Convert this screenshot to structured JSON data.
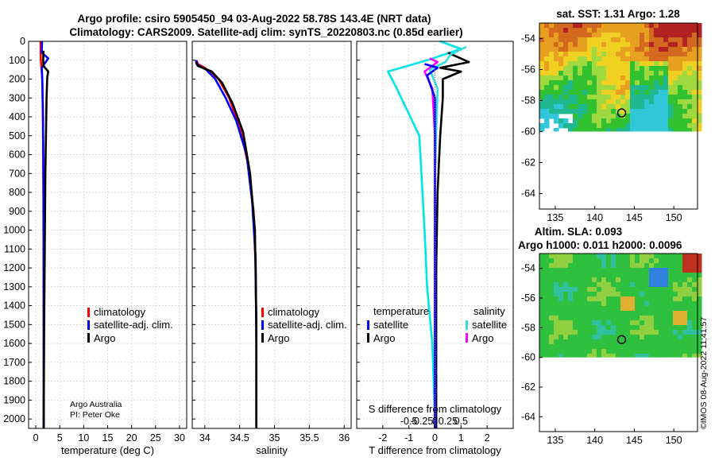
{
  "header": {
    "title_line1": "Argo profile: csiro 5905450_94 03-Aug-2022 58.78S 143.4E (NRT data)",
    "title_line2": "Climatology: CARS2009. Satellite-adj clim: synTS_20220803.nc (0.85d earlier)"
  },
  "credits": {
    "program": "Argo Australia",
    "pi": "PI: Peter Oke",
    "watermark": "©IMOS 08-Aug-2022 11:41:57"
  },
  "colors": {
    "climatology": "#ff0000",
    "satellite_clim": "#0000ff",
    "argo": "#000000",
    "temp_satellite": "#00e5e5",
    "sal_argo": "#ff00ff",
    "sal_satellite": "#33dddd"
  },
  "chart_data": [
    {
      "type": "line",
      "id": "temperature",
      "xlabel": "temperature (deg C)",
      "xlim": [
        -1.5,
        31.5
      ],
      "xticks": [
        0,
        5,
        10,
        15,
        20,
        25,
        30
      ],
      "ylim": [
        0,
        2050
      ],
      "yticks": [
        0,
        100,
        200,
        300,
        400,
        500,
        600,
        700,
        800,
        900,
        1000,
        1100,
        1200,
        1300,
        1400,
        1500,
        1600,
        1700,
        1800,
        1900,
        2000
      ],
      "ydir": "reverse",
      "grid": true,
      "legend": [
        "climatology",
        "satellite-adj. clim.",
        "Argo"
      ],
      "series": [
        {
          "name": "climatology",
          "color": "#ff0000",
          "x": [
            1.0,
            1.0,
            1.05,
            1.2,
            1.35,
            1.5,
            1.6,
            1.65,
            1.65
          ],
          "y": [
            0,
            50,
            100,
            150,
            200,
            400,
            800,
            1500,
            2050
          ]
        },
        {
          "name": "satellite-adj. clim.",
          "color": "#0000ff",
          "x": [
            1.3,
            1.25,
            2.6,
            1.25,
            1.35,
            1.5,
            1.6,
            1.65,
            1.65
          ],
          "y": [
            0,
            60,
            90,
            140,
            200,
            400,
            800,
            1500,
            2050
          ]
        },
        {
          "name": "Argo",
          "color": "#000000",
          "x": [
            1.6,
            1.55,
            1.6,
            2.6,
            2.4,
            2.25,
            2.0,
            1.75,
            1.65
          ],
          "y": [
            50,
            100,
            130,
            160,
            190,
            300,
            700,
            1500,
            2050
          ]
        }
      ]
    },
    {
      "type": "line",
      "id": "salinity",
      "xlabel": "salinity",
      "xlim": [
        33.82,
        36.1
      ],
      "xticks": [
        34,
        34.5,
        35,
        35.5,
        36
      ],
      "ylim": [
        0,
        2050
      ],
      "ydir": "reverse",
      "grid": true,
      "legend": [
        "climatology",
        "satellite-adj. clim.",
        "Argo"
      ],
      "series": [
        {
          "name": "climatology",
          "color": "#ff0000",
          "x": [
            33.88,
            33.9,
            34.0,
            34.2,
            34.35,
            34.5,
            34.62,
            34.7,
            34.73,
            34.74,
            34.74
          ],
          "y": [
            100,
            120,
            140,
            200,
            300,
            450,
            650,
            900,
            1200,
            1600,
            2050
          ]
        },
        {
          "name": "satellite-adj. clim.",
          "color": "#0000ff",
          "x": [
            33.87,
            33.9,
            34.02,
            34.15,
            34.3,
            34.45,
            34.6,
            34.68,
            34.73,
            34.74,
            34.74
          ],
          "y": [
            100,
            125,
            150,
            200,
            300,
            420,
            600,
            850,
            1150,
            1600,
            2050
          ]
        },
        {
          "name": "Argo",
          "color": "#000000",
          "x": [
            33.87,
            33.9,
            34.1,
            34.25,
            34.4,
            34.55,
            34.65,
            34.72,
            34.74,
            34.74
          ],
          "y": [
            110,
            130,
            160,
            220,
            330,
            480,
            700,
            1000,
            1500,
            2050
          ]
        }
      ]
    },
    {
      "type": "line",
      "id": "difference",
      "xlabel": "T difference from climatology",
      "xlabel_top": "S difference from climatology",
      "xlim": [
        -3,
        3
      ],
      "xticks": [
        -2,
        -1,
        0,
        1,
        2
      ],
      "top_ticks": [
        "-0.5",
        "-0.25",
        "0",
        "0.25",
        "0.5"
      ],
      "ylim": [
        0,
        2050
      ],
      "ydir": "reverse",
      "grid": true,
      "legend_temperature": {
        "title": "temperature",
        "entries": [
          "satellite",
          "Argo"
        ]
      },
      "legend_salinity": {
        "title": "salinity",
        "entries": [
          "satellite",
          "Argo"
        ]
      },
      "series": [
        {
          "name": "temperature satellite",
          "color": "#00e5e5",
          "x": [
            0.2,
            1.0,
            -0.3,
            -1.8,
            -1.5,
            -0.6,
            -0.4,
            -0.3,
            -0.1,
            0.0,
            0.0
          ],
          "y": [
            0,
            40,
            100,
            160,
            240,
            500,
            1000,
            1300,
            1600,
            2000,
            2050
          ]
        },
        {
          "name": "temperature Argo",
          "color": "#000000",
          "x": [
            0.5,
            1.3,
            0.2,
            1.0,
            0.3,
            0.3,
            0.2,
            0.1,
            0.05,
            0.05
          ],
          "y": [
            60,
            110,
            140,
            160,
            200,
            300,
            500,
            800,
            1200,
            2050
          ]
        },
        {
          "name": "salinity satellite",
          "color": "#33dddd",
          "x": [
            1.2,
            0.6,
            0.4,
            -0.2,
            0.1,
            0.0,
            0.0
          ],
          "y": [
            30,
            70,
            110,
            150,
            250,
            700,
            2050
          ]
        },
        {
          "name": "salinity Argo",
          "color": "#ff00ff",
          "x": [
            -0.2,
            0.1,
            -0.4,
            -0.1,
            0.0,
            0.0
          ],
          "y": [
            90,
            110,
            160,
            250,
            500,
            2050
          ]
        },
        {
          "name": "blue trace",
          "color": "#0000ff",
          "x": [
            -0.4,
            0.1,
            -0.3,
            0.0,
            0.0
          ],
          "y": [
            120,
            140,
            180,
            300,
            2050
          ]
        }
      ]
    },
    {
      "type": "heatmap",
      "id": "sst_map",
      "title": "sat. SST: 1.31 Argo: 1.28",
      "xlim": [
        133,
        153
      ],
      "ylim": [
        -65,
        -53
      ],
      "xticks": [
        135,
        140,
        145,
        150
      ],
      "yticks": [
        -54,
        -56,
        -58,
        -60,
        -62,
        -64
      ],
      "marker": {
        "lon": 143.4,
        "lat": -58.8
      }
    },
    {
      "type": "heatmap",
      "id": "sla_map",
      "title_line1": "Altim. SLA: 0.093",
      "title_line2": "Argo h1000: 0.011 h2000: 0.0096",
      "xlim": [
        133,
        153
      ],
      "ylim": [
        -65,
        -53
      ],
      "xticks": [
        135,
        140,
        145,
        150
      ],
      "yticks": [
        -54,
        -56,
        -58,
        -60,
        -62,
        -64
      ],
      "marker": {
        "lon": 143.4,
        "lat": -58.8
      }
    }
  ]
}
